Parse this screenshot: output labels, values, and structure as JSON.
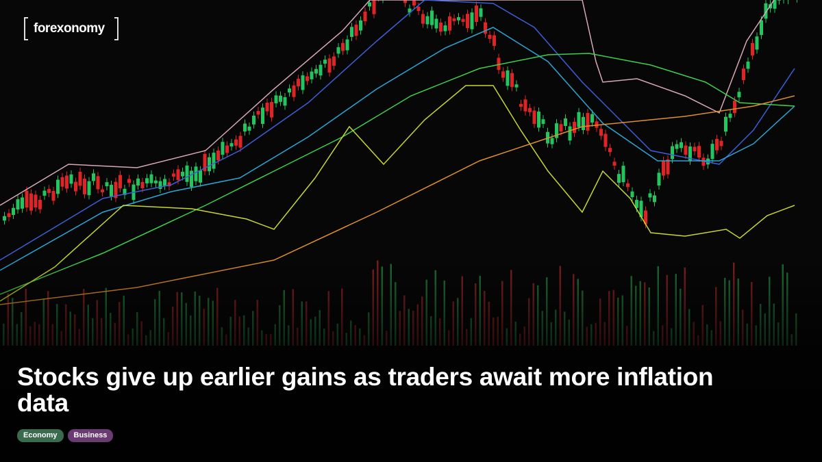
{
  "logo": "forexonomy",
  "article": {
    "title": "Stocks give up earlier gains as traders await more inflation data",
    "tags": [
      "Economy",
      "Business"
    ]
  }
}
